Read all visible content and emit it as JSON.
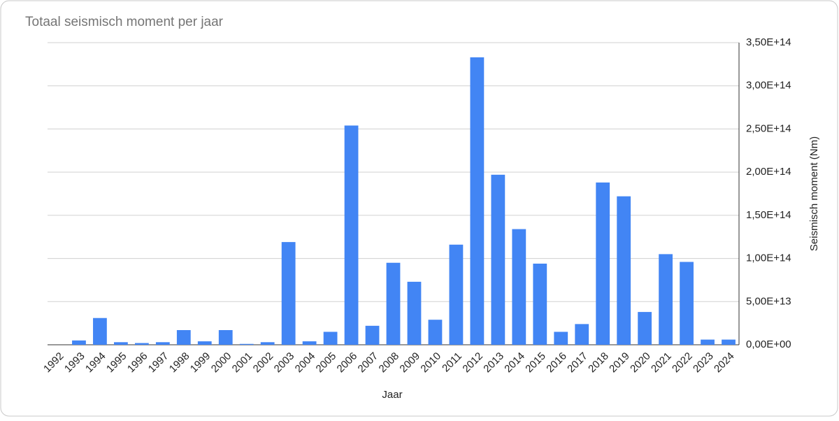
{
  "chart_data": {
    "type": "bar",
    "title": "Totaal seismisch moment per jaar",
    "x_label": "Jaar",
    "y_label": "Seismisch moment (Nm)",
    "categories": [
      "1992",
      "1993",
      "1994",
      "1995",
      "1996",
      "1997",
      "1998",
      "1999",
      "2000",
      "2001",
      "2002",
      "2003",
      "2004",
      "2005",
      "2006",
      "2007",
      "2008",
      "2009",
      "2010",
      "2011",
      "2012",
      "2013",
      "2014",
      "2015",
      "2016",
      "2017",
      "2018",
      "2019",
      "2020",
      "2021",
      "2022",
      "2023",
      "2024"
    ],
    "values": [
      0,
      5000000000000.0,
      31000000000000.0,
      3000000000000.0,
      2000000000000.0,
      3000000000000.0,
      17000000000000.0,
      4000000000000.0,
      17000000000000.0,
      1000000000000.0,
      3000000000000.0,
      119000000000000.0,
      4000000000000.0,
      15000000000000.0,
      254000000000000.0,
      22000000000000.0,
      95000000000000.0,
      73000000000000.0,
      29000000000000.0,
      116000000000000.0,
      333000000000000.0,
      197000000000000.0,
      134000000000000.0,
      94000000000000.0,
      15000000000000.0,
      24000000000000.0,
      188000000000000.0,
      172000000000000.0,
      38000000000000.0,
      105000000000000.0,
      96000000000000.0,
      6000000000000.0,
      6000000000000.0
    ],
    "color": "#4285f4",
    "ylim": [
      0,
      350000000000000.0
    ],
    "yticks": [
      {
        "value": 0,
        "label": "0,00E+00"
      },
      {
        "value": 50000000000000.0,
        "label": "5,00E+13"
      },
      {
        "value": 100000000000000.0,
        "label": "1,00E+14"
      },
      {
        "value": 150000000000000.0,
        "label": "1,50E+14"
      },
      {
        "value": 200000000000000.0,
        "label": "2,00E+14"
      },
      {
        "value": 250000000000000.0,
        "label": "2,50E+14"
      },
      {
        "value": 300000000000000.0,
        "label": "3,00E+14"
      },
      {
        "value": 350000000000000.0,
        "label": "3,50E+14"
      }
    ],
    "grid": true
  }
}
